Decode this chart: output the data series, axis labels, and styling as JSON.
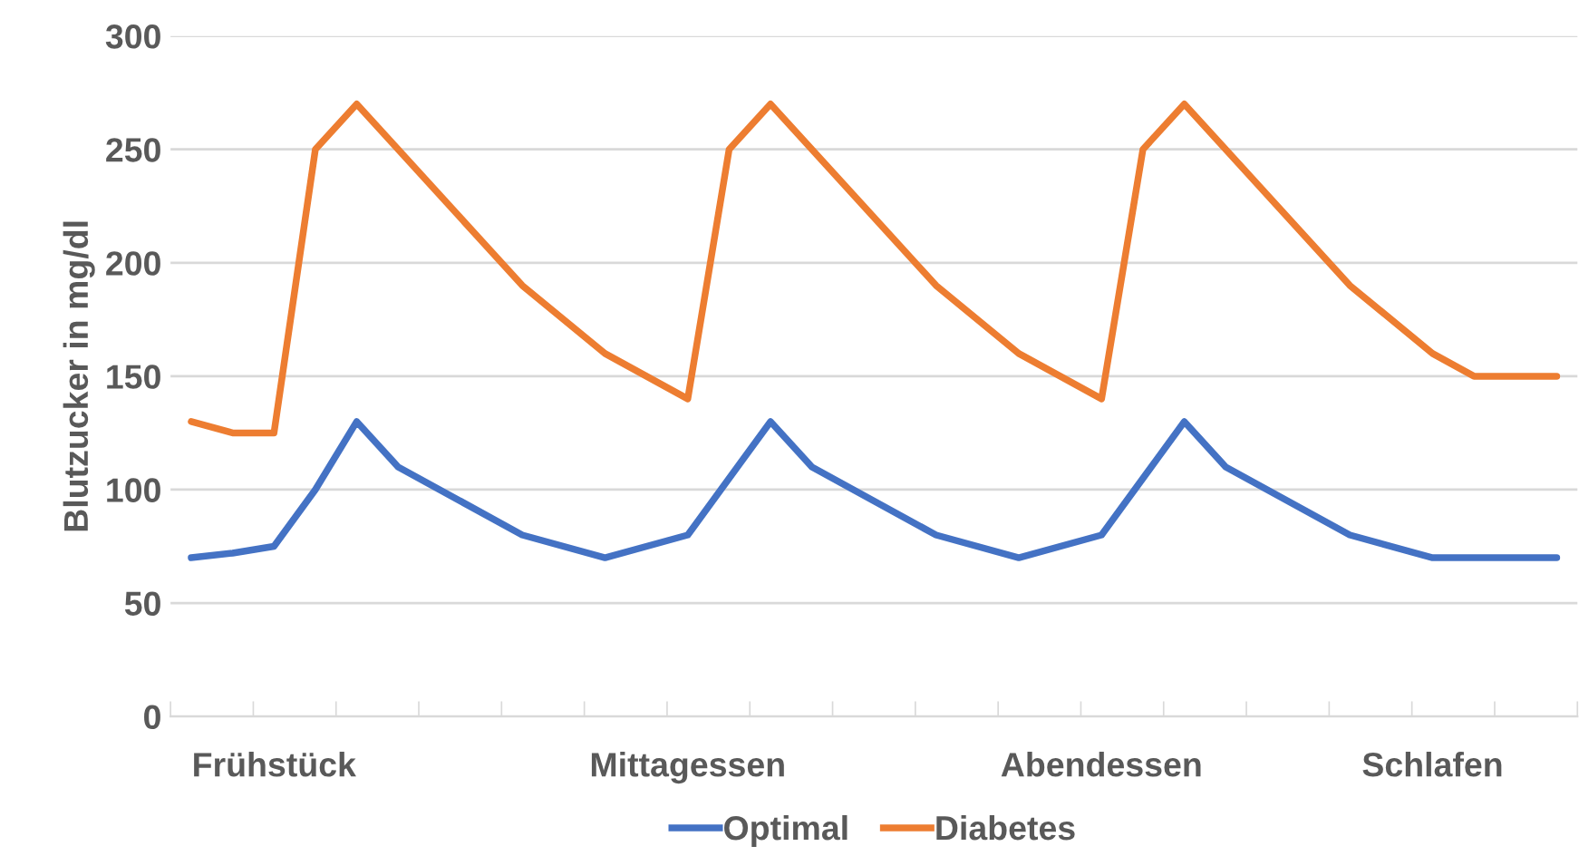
{
  "chart_data": {
    "type": "line",
    "ylabel": "Blutzucker in mg/dl",
    "categories": [
      null,
      null,
      "Frühstück",
      null,
      null,
      null,
      null,
      null,
      null,
      null,
      null,
      null,
      "Mittagessen",
      null,
      null,
      null,
      null,
      null,
      null,
      null,
      null,
      null,
      "Abendessen",
      null,
      null,
      null,
      null,
      null,
      null,
      null,
      "Schlafen",
      null,
      null,
      null
    ],
    "series": [
      {
        "name": "Optimal",
        "color": "#4472c4",
        "values": [
          70,
          72,
          75,
          100,
          130,
          110,
          null,
          null,
          80,
          null,
          70,
          null,
          80,
          null,
          130,
          110,
          null,
          null,
          80,
          null,
          70,
          null,
          80,
          null,
          130,
          110,
          null,
          null,
          80,
          null,
          70,
          70,
          70,
          70
        ]
      },
      {
        "name": "Diabetes",
        "color": "#ed7d31",
        "values": [
          130,
          125,
          125,
          250,
          270,
          null,
          null,
          null,
          190,
          null,
          160,
          null,
          140,
          250,
          270,
          null,
          null,
          null,
          190,
          null,
          160,
          null,
          140,
          250,
          270,
          null,
          null,
          null,
          190,
          null,
          160,
          150,
          150,
          150
        ]
      }
    ],
    "ylim": [
      0,
      300
    ],
    "yticks": [
      0,
      50,
      100,
      150,
      200,
      250,
      300
    ],
    "grid": "y",
    "legend": "bottom",
    "marker": "none",
    "line_style": "solid"
  }
}
